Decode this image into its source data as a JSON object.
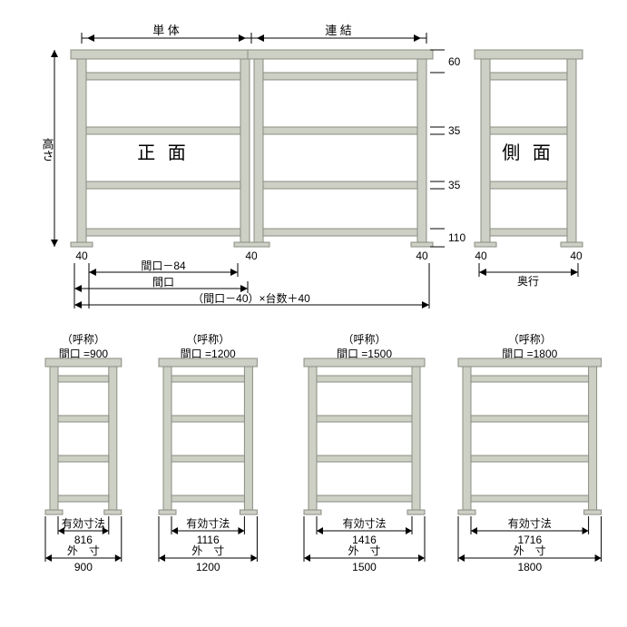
{
  "colors": {
    "shelf_fill": "#cdd0c5",
    "shelf_stroke": "#8a8d82",
    "dim_line": "#000000",
    "text": "#000000",
    "bg": "#ffffff"
  },
  "top": {
    "front_label": "正 面",
    "side_label": "側 面",
    "single_label": "単 体",
    "connect_label": "連 結",
    "height_label": "高さ",
    "depth_label": "奥行",
    "post_width_label": "40",
    "dim1_60": "60",
    "dim2_35a": "35",
    "dim3_35b": "35",
    "dim4_110": "110",
    "gap_label": "間口－84",
    "width_label": "間口",
    "total_label": "（間口－40）×台数＋40"
  },
  "bottom_units": [
    {
      "call_label": "（呼称）",
      "width_label": "間口 =900",
      "eff_label": "有効寸法",
      "eff_val": "816",
      "out_label": "外　寸",
      "out_val": "900",
      "rel_width": 90
    },
    {
      "call_label": "（呼称）",
      "width_label": "間口 =1200",
      "eff_label": "有効寸法",
      "eff_val": "1116",
      "out_label": "外　寸",
      "out_val": "1200",
      "rel_width": 120
    },
    {
      "call_label": "（呼称）",
      "width_label": "間口 =1500",
      "eff_label": "有効寸法",
      "eff_val": "1416",
      "out_label": "外　寸",
      "out_val": "1500",
      "rel_width": 150
    },
    {
      "call_label": "（呼称）",
      "width_label": "間口 =1800",
      "eff_label": "有効寸法",
      "eff_val": "1716",
      "out_label": "外　寸",
      "out_val": "1800",
      "rel_width": 180
    }
  ]
}
